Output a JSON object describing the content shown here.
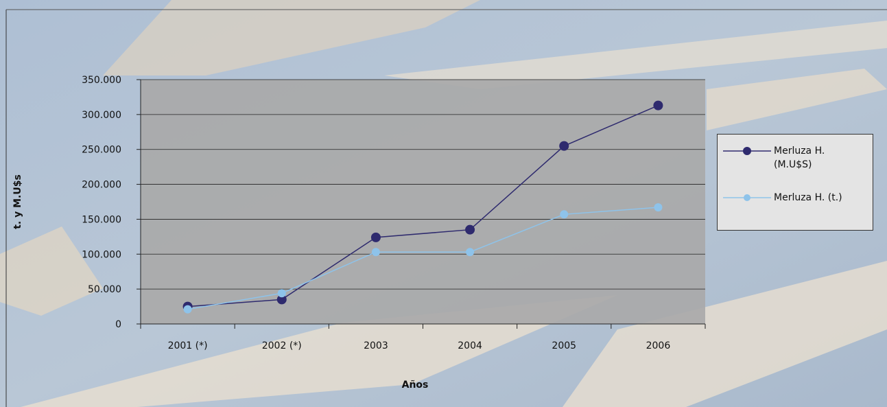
{
  "chart_data": {
    "type": "line",
    "x_label": "Años",
    "y_label": "t. y M.U$s",
    "categories": [
      "2001 (*)",
      "2002 (*)",
      "2003",
      "2004",
      "2005",
      "2006"
    ],
    "series": [
      {
        "name": "Merluza H. (M.U$S)",
        "color": "#2e2a6e",
        "values": [
          25000,
          35000,
          124000,
          135000,
          255000,
          313000
        ]
      },
      {
        "name": "Merluza H. (t.)",
        "color": "#8ec3ea",
        "values": [
          21000,
          44000,
          103000,
          103000,
          157000,
          167000
        ]
      }
    ],
    "ylim": [
      0,
      350000
    ],
    "yticks": [
      0,
      {
        "value": 50000,
        "label": "50.000"
      },
      {
        "value": 100000,
        "label": "100.000"
      },
      {
        "value": 150000,
        "label": "150.000"
      },
      {
        "value": 200000,
        "label": "200.000"
      },
      {
        "value": 250000,
        "label": "250.000"
      },
      {
        "value": 300000,
        "label": "300.000"
      },
      {
        "value": 350000,
        "label": "350.000"
      }
    ],
    "grid": true,
    "legend": "right"
  }
}
